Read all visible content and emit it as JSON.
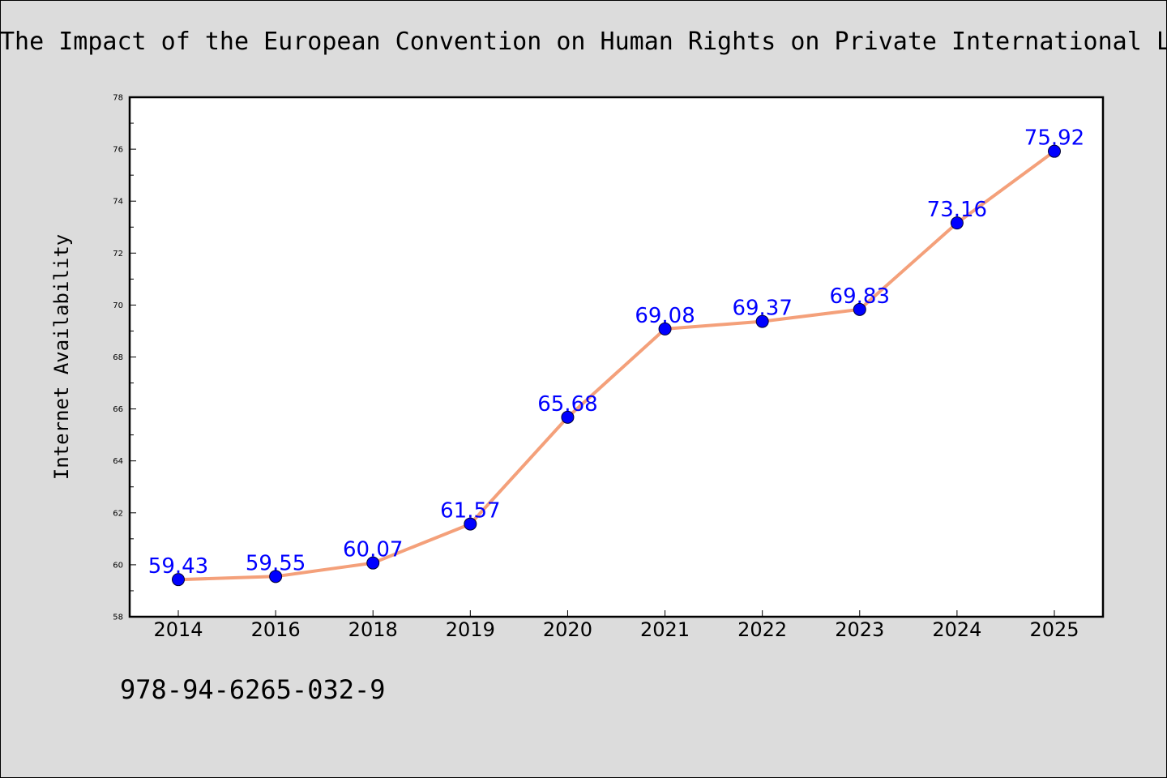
{
  "chart_data": {
    "type": "line",
    "title": "The Impact of the European Convention on Human Rights on Private International Law",
    "xlabel": "",
    "ylabel": "Internet Availability",
    "categories": [
      "2014",
      "2016",
      "2018",
      "2019",
      "2020",
      "2021",
      "2022",
      "2023",
      "2024",
      "2025"
    ],
    "series": [
      {
        "values": [
          59.43,
          59.55,
          60.07,
          61.57,
          65.68,
          69.08,
          69.37,
          69.83,
          73.16,
          75.92
        ],
        "data_labels": [
          "59.43",
          "59.55",
          "60.07",
          "61.57",
          "65.68",
          "69.08",
          "69.37",
          "69.83",
          "73.16",
          "75.92"
        ]
      }
    ],
    "ylim": [
      58,
      78
    ],
    "yticks": [
      "58",
      "60",
      "62",
      "64",
      "66",
      "68",
      "70",
      "72",
      "74",
      "76",
      "78"
    ],
    "grid": false,
    "legend": "none",
    "colors": {
      "line": "#f4a07a",
      "marker": "#0000ff",
      "marker_edge": "#000033",
      "label": "#0000ff",
      "background": "#dcdcdc",
      "plot_background": "#ffffff"
    }
  },
  "footer": {
    "isbn": "978-94-6265-032-9"
  }
}
